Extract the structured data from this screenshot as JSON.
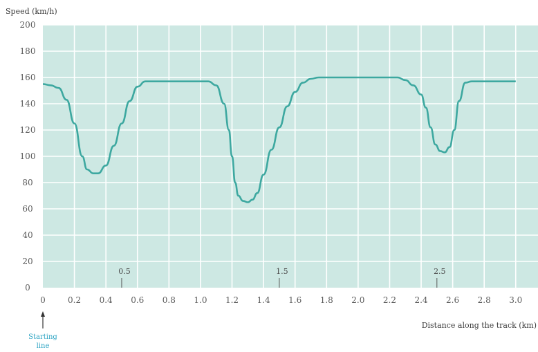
{
  "chart_data": {
    "type": "line",
    "ylabel": "Speed (km/h)",
    "xlabel": "Distance along the track (km)",
    "xlim": [
      0,
      3.0
    ],
    "ylim": [
      0,
      200
    ],
    "x_ticks": [
      0,
      0.2,
      0.4,
      0.6,
      0.8,
      1.0,
      1.2,
      1.4,
      1.6,
      1.8,
      2.0,
      2.2,
      2.4,
      2.6,
      2.8,
      3.0
    ],
    "x_tick_labels": [
      "0",
      "0.2",
      "0.4",
      "0.6",
      "0.8",
      "1.0",
      "1.2",
      "1.4",
      "1.6",
      "1.8",
      "2.0",
      "2.2",
      "2.4",
      "2.6",
      "2.8",
      "3.0"
    ],
    "y_ticks": [
      0,
      20,
      40,
      60,
      80,
      100,
      120,
      140,
      160,
      180,
      200
    ],
    "y_tick_labels": [
      "0",
      "20",
      "40",
      "60",
      "80",
      "100",
      "120",
      "140",
      "160",
      "180",
      "200"
    ],
    "grid": true,
    "series": [
      {
        "x": [
          0,
          0.05,
          0.1,
          0.15,
          0.2,
          0.25,
          0.28,
          0.32,
          0.35,
          0.4,
          0.45,
          0.5,
          0.55,
          0.6,
          0.65,
          0.7,
          0.8,
          0.9,
          1.0,
          1.05,
          1.1,
          1.15,
          1.18,
          1.2,
          1.22,
          1.24,
          1.27,
          1.3,
          1.33,
          1.36,
          1.4,
          1.45,
          1.5,
          1.55,
          1.6,
          1.65,
          1.7,
          1.75,
          1.8,
          1.9,
          2.0,
          2.1,
          2.2,
          2.25,
          2.3,
          2.35,
          2.4,
          2.43,
          2.46,
          2.49,
          2.52,
          2.55,
          2.58,
          2.61,
          2.64,
          2.68,
          2.72,
          2.8,
          2.9,
          3.0
        ],
        "y": [
          155,
          154,
          152,
          143,
          125,
          100,
          90,
          87,
          87,
          93,
          108,
          125,
          142,
          153,
          157,
          157,
          157,
          157,
          157,
          157,
          154,
          140,
          120,
          100,
          80,
          70,
          66,
          65,
          67,
          72,
          86,
          105,
          122,
          138,
          149,
          156,
          159,
          160,
          160,
          160,
          160,
          160,
          160,
          160,
          158,
          154,
          147,
          137,
          122,
          109,
          104,
          103,
          107,
          120,
          142,
          156,
          157,
          157,
          157,
          157
        ]
      }
    ],
    "markers": [
      {
        "x": 0.5,
        "label": "0.5"
      },
      {
        "x": 1.5,
        "label": "1.5"
      },
      {
        "x": 2.5,
        "label": "2.5"
      }
    ],
    "start_annotation": {
      "x": 0,
      "line1": "Starting",
      "line2": "line"
    },
    "colors": {
      "plot_background": "#cde8e3",
      "grid": "#ffffff",
      "line": "#3da8a0",
      "start_annotation": "#2fa5c4"
    }
  }
}
